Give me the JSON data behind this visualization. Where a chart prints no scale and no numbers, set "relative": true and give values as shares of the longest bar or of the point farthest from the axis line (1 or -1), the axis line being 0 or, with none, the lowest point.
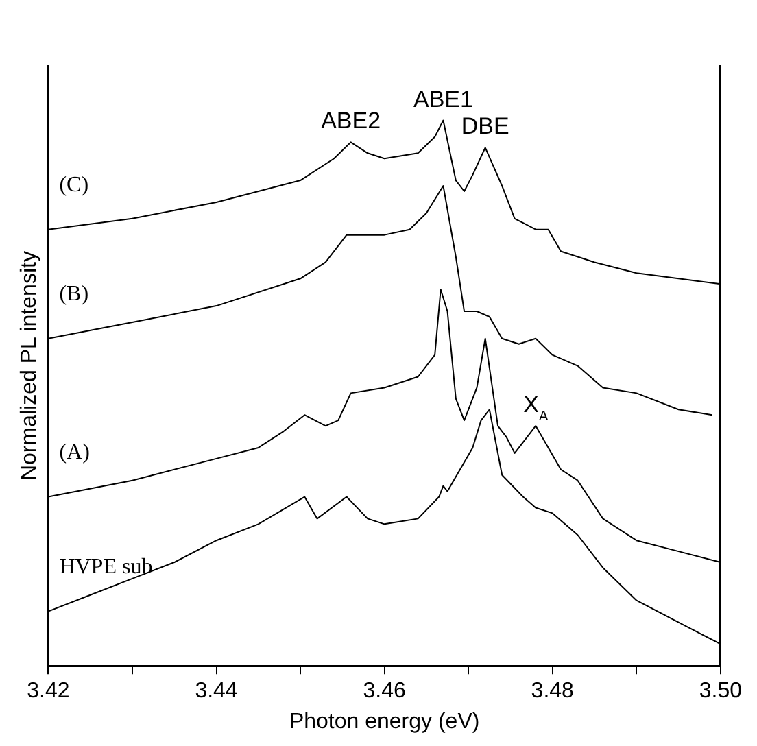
{
  "chart_data": {
    "type": "line",
    "relative": true,
    "xlabel": "Photon energy (eV)",
    "ylabel": "Normalized PL intensity",
    "xlim": [
      3.42,
      3.5
    ],
    "xticks": [
      {
        "value": 3.42,
        "label": "3.42"
      },
      {
        "value": 3.43,
        "label": null
      },
      {
        "value": 3.44,
        "label": "3.44"
      },
      {
        "value": 3.45,
        "label": null
      },
      {
        "value": 3.46,
        "label": "3.46"
      },
      {
        "value": 3.47,
        "label": null
      },
      {
        "value": 3.48,
        "label": "3.48"
      },
      {
        "value": 3.49,
        "label": null
      },
      {
        "value": 3.5,
        "label": "3.50"
      }
    ],
    "legend": false,
    "grid": false,
    "marker": "none",
    "line_style": "solid",
    "series": [
      {
        "name": "(C)",
        "color": "#000000",
        "x": [
          3.42,
          3.43,
          3.44,
          3.45,
          3.454,
          3.456,
          3.458,
          3.46,
          3.464,
          3.466,
          3.467,
          3.4685,
          3.4695,
          3.4705,
          3.472,
          3.474,
          3.4755,
          3.478,
          3.4795,
          3.481,
          3.485,
          3.49,
          3.495,
          3.5
        ],
        "values": [
          0.8,
          0.82,
          0.85,
          0.89,
          0.93,
          0.96,
          0.94,
          0.93,
          0.94,
          0.97,
          1,
          0.89,
          0.87,
          0.9,
          0.95,
          0.88,
          0.82,
          0.8,
          0.8,
          0.76,
          0.74,
          0.72,
          0.71,
          0.7
        ]
      },
      {
        "name": "(B)",
        "color": "#000000",
        "x": [
          3.42,
          3.43,
          3.44,
          3.45,
          3.453,
          3.4555,
          3.46,
          3.463,
          3.465,
          3.467,
          3.4685,
          3.4695,
          3.471,
          3.4725,
          3.474,
          3.476,
          3.478,
          3.48,
          3.483,
          3.486,
          3.49,
          3.495,
          3.499
        ],
        "values": [
          0.6,
          0.63,
          0.66,
          0.71,
          0.74,
          0.79,
          0.79,
          0.8,
          0.83,
          0.88,
          0.75,
          0.65,
          0.65,
          0.64,
          0.6,
          0.59,
          0.6,
          0.57,
          0.55,
          0.51,
          0.5,
          0.47,
          0.46
        ]
      },
      {
        "name": "(A)",
        "color": "#000000",
        "x": [
          3.42,
          3.43,
          3.44,
          3.445,
          3.448,
          3.4505,
          3.453,
          3.4545,
          3.456,
          3.46,
          3.464,
          3.466,
          3.4667,
          3.4675,
          3.4685,
          3.4695,
          3.471,
          3.472,
          3.4735,
          3.4745,
          3.4755,
          3.478,
          3.481,
          3.483,
          3.486,
          3.49,
          3.495,
          3.5
        ],
        "values": [
          0.31,
          0.34,
          0.38,
          0.4,
          0.43,
          0.46,
          0.44,
          0.45,
          0.5,
          0.51,
          0.53,
          0.57,
          0.69,
          0.65,
          0.49,
          0.45,
          0.51,
          0.6,
          0.44,
          0.42,
          0.39,
          0.44,
          0.36,
          0.34,
          0.27,
          0.23,
          0.21,
          0.19
        ]
      },
      {
        "name": "HVPE sub",
        "color": "#000000",
        "x": [
          3.42,
          3.425,
          3.43,
          3.435,
          3.44,
          3.445,
          3.4505,
          3.452,
          3.4555,
          3.458,
          3.46,
          3.464,
          3.4665,
          3.467,
          3.4675,
          3.469,
          3.4705,
          3.4715,
          3.4725,
          3.474,
          3.4765,
          3.478,
          3.48,
          3.483,
          3.486,
          3.49,
          3.495,
          3.5
        ],
        "values": [
          0.1,
          0.13,
          0.16,
          0.19,
          0.23,
          0.26,
          0.31,
          0.27,
          0.31,
          0.27,
          0.26,
          0.27,
          0.31,
          0.33,
          0.32,
          0.36,
          0.4,
          0.45,
          0.47,
          0.35,
          0.31,
          0.29,
          0.28,
          0.24,
          0.18,
          0.12,
          0.08,
          0.04
        ]
      }
    ],
    "annotations": [
      {
        "text": "ABE2",
        "x": 3.456,
        "y": 0.96
      },
      {
        "text": "ABE1",
        "x": 3.467,
        "y": 1
      },
      {
        "text": "DBE",
        "x": 3.472,
        "y": 0.95
      },
      {
        "text": "X$_{A}$",
        "x": 3.478,
        "y": 0.44
      }
    ]
  }
}
